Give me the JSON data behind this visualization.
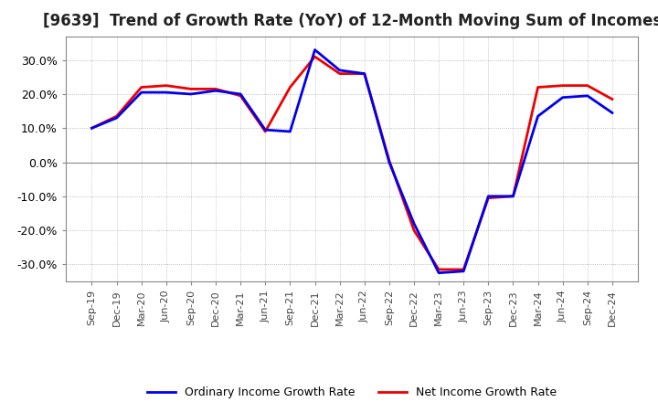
{
  "title": "[9639]  Trend of Growth Rate (YoY) of 12-Month Moving Sum of Incomes",
  "title_fontsize": 12,
  "ylim": [
    -35,
    37
  ],
  "yticks": [
    -30,
    -20,
    -10,
    0,
    10,
    20,
    30
  ],
  "background_color": "#ffffff",
  "plot_bg_color": "#ffffff",
  "grid_color": "#aaaaaa",
  "legend_labels": [
    "Ordinary Income Growth Rate",
    "Net Income Growth Rate"
  ],
  "line_colors": [
    "#0000ee",
    "#ee0000"
  ],
  "line_width": 2.0,
  "x_labels": [
    "Sep-19",
    "Dec-19",
    "Mar-20",
    "Jun-20",
    "Sep-20",
    "Dec-20",
    "Mar-21",
    "Jun-21",
    "Sep-21",
    "Dec-21",
    "Mar-22",
    "Jun-22",
    "Sep-22",
    "Dec-22",
    "Mar-23",
    "Jun-23",
    "Sep-23",
    "Dec-23",
    "Mar-24",
    "Jun-24",
    "Sep-24",
    "Dec-24"
  ],
  "ordinary_income_growth": [
    10.0,
    13.0,
    20.5,
    20.5,
    20.0,
    21.0,
    20.0,
    9.5,
    9.0,
    33.0,
    27.0,
    26.0,
    0.0,
    -18.0,
    -32.5,
    -32.0,
    -10.0,
    -10.0,
    13.5,
    19.0,
    19.5,
    14.5
  ],
  "net_income_growth": [
    10.0,
    13.5,
    22.0,
    22.5,
    21.5,
    21.5,
    19.5,
    9.0,
    22.0,
    31.0,
    26.0,
    26.0,
    0.5,
    -20.0,
    -31.5,
    -31.5,
    -10.5,
    -10.0,
    22.0,
    22.5,
    22.5,
    18.5
  ]
}
